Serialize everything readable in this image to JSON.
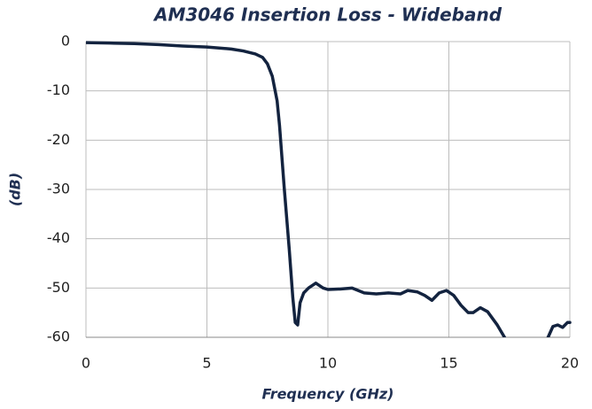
{
  "chart_data": {
    "type": "line",
    "title": "AM3046 Insertion Loss - Wideband",
    "xlabel": "Frequency (GHz)",
    "ylabel": "(dB)",
    "x": [
      0,
      1,
      2,
      3,
      4,
      5,
      6,
      6.5,
      7,
      7.3,
      7.5,
      7.7,
      7.9,
      8.0,
      8.2,
      8.4,
      8.55,
      8.65,
      8.75,
      8.85,
      9.0,
      9.2,
      9.5,
      9.8,
      10,
      10.5,
      11,
      11.5,
      12,
      12.5,
      13,
      13.3,
      13.7,
      14,
      14.3,
      14.6,
      14.9,
      15.2,
      15.5,
      15.8,
      16,
      16.3,
      16.6,
      17,
      17.3,
      18.2,
      19.1,
      19.3,
      19.5,
      19.7,
      19.9,
      20
    ],
    "series": [
      {
        "name": "Insertion Loss",
        "color": "#13233f",
        "values": [
          -0.2,
          -0.3,
          -0.4,
          -0.6,
          -0.9,
          -1.1,
          -1.5,
          -1.9,
          -2.5,
          -3.2,
          -4.5,
          -7,
          -12,
          -17,
          -30,
          -42,
          -52,
          -57,
          -57.5,
          -53,
          -51,
          -50,
          -49,
          -50,
          -50.3,
          -50.2,
          -50,
          -51,
          -51.2,
          -51,
          -51.2,
          -50.5,
          -50.8,
          -51.5,
          -52.5,
          -51,
          -50.5,
          -51.5,
          -53.5,
          -55,
          -55,
          -54,
          -54.8,
          -57.5,
          -60,
          null,
          -60,
          -57.8,
          -57.5,
          -58,
          -57,
          -57
        ]
      }
    ],
    "xlim": [
      0,
      20
    ],
    "xticks": [
      0,
      5,
      10,
      15,
      20
    ],
    "ylim": [
      -60,
      0
    ],
    "yticks": [
      0,
      -10,
      -20,
      -30,
      -40,
      -50,
      -60
    ],
    "grid": true
  }
}
